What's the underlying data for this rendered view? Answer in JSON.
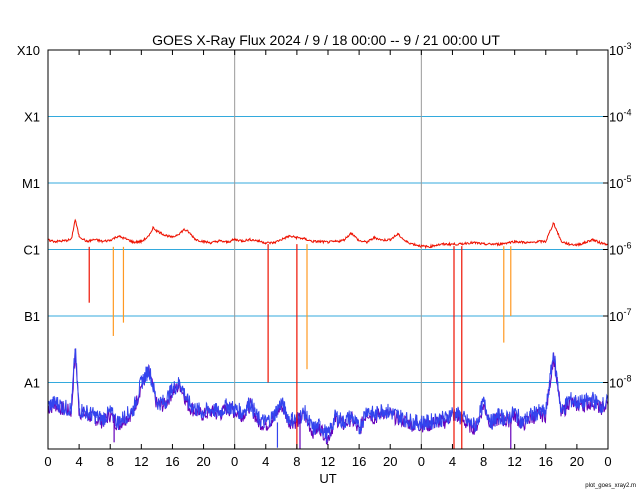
{
  "chart_data": {
    "type": "line",
    "title": "GOES X-Ray Flux   2024  /  9  /  18   00:00 --  9  /  21   00:00   UT",
    "xlabel": "UT",
    "credit": "plot_goes_xray2.m",
    "x_tick_labels": [
      "0",
      "4",
      "8",
      "12",
      "16",
      "20",
      "0",
      "4",
      "8",
      "12",
      "16",
      "20",
      "0",
      "4",
      "8",
      "12",
      "16",
      "20",
      "0"
    ],
    "x_tick_hours": [
      0,
      4,
      8,
      12,
      16,
      20,
      24,
      28,
      32,
      36,
      40,
      44,
      48,
      52,
      56,
      60,
      64,
      68,
      72
    ],
    "day_boundaries_hours": [
      24,
      48
    ],
    "xlim": [
      0,
      72
    ],
    "ylim_log10_flux": [
      -9,
      -3
    ],
    "y_scale": "log",
    "left_class_labels": [
      {
        "label": "X10",
        "log10_flux": -3
      },
      {
        "label": "X1",
        "log10_flux": -4
      },
      {
        "label": "M1",
        "log10_flux": -5
      },
      {
        "label": "C1",
        "log10_flux": -6
      },
      {
        "label": "B1",
        "log10_flux": -7
      },
      {
        "label": "A1",
        "log10_flux": -8
      }
    ],
    "right_tick_labels": [
      {
        "base": "10",
        "exp": "-3",
        "log10_flux": -3
      },
      {
        "base": "10",
        "exp": "-4",
        "log10_flux": -4
      },
      {
        "base": "10",
        "exp": "-5",
        "log10_flux": -5
      },
      {
        "base": "10",
        "exp": "-6",
        "log10_flux": -6
      },
      {
        "base": "10",
        "exp": "-7",
        "log10_flux": -7
      },
      {
        "base": "10",
        "exp": "-8",
        "log10_flux": -8
      }
    ],
    "class_gridlines_log10_flux": [
      -4,
      -5,
      -6,
      -7,
      -8
    ],
    "colors": {
      "long_primary": "#ee1100",
      "long_secondary": "#ff9922",
      "short_primary": "#3344ee",
      "short_secondary": "#6600bb",
      "class_grid": "#33aadd",
      "day_line": "#999999"
    },
    "series": [
      {
        "color": "#ee1100",
        "points": [
          [
            0,
            -5.86
          ],
          [
            1,
            -5.88
          ],
          [
            2,
            -5.87
          ],
          [
            3,
            -5.85
          ],
          [
            3.5,
            -5.55
          ],
          [
            4,
            -5.8
          ],
          [
            5,
            -5.88
          ],
          [
            6,
            -5.85
          ],
          [
            7,
            -5.88
          ],
          [
            8,
            -5.86
          ],
          [
            9,
            -5.8
          ],
          [
            10,
            -5.84
          ],
          [
            11,
            -5.89
          ],
          [
            12,
            -5.88
          ],
          [
            13,
            -5.8
          ],
          [
            13.5,
            -5.67
          ],
          [
            14,
            -5.72
          ],
          [
            15,
            -5.78
          ],
          [
            16,
            -5.82
          ],
          [
            17,
            -5.75
          ],
          [
            17.5,
            -5.7
          ],
          [
            18,
            -5.73
          ],
          [
            19,
            -5.85
          ],
          [
            20,
            -5.88
          ],
          [
            21,
            -5.9
          ],
          [
            22,
            -5.87
          ],
          [
            23,
            -5.89
          ],
          [
            24,
            -5.85
          ],
          [
            25,
            -5.87
          ],
          [
            26,
            -5.85
          ],
          [
            27,
            -5.87
          ],
          [
            28,
            -5.9
          ],
          [
            29,
            -5.9
          ],
          [
            30,
            -5.85
          ],
          [
            31,
            -5.8
          ],
          [
            32,
            -5.82
          ],
          [
            33,
            -5.84
          ],
          [
            34,
            -5.88
          ],
          [
            35,
            -5.88
          ],
          [
            36,
            -5.89
          ],
          [
            37,
            -5.88
          ],
          [
            38,
            -5.86
          ],
          [
            39,
            -5.75
          ],
          [
            40,
            -5.87
          ],
          [
            41,
            -5.89
          ],
          [
            42,
            -5.82
          ],
          [
            43,
            -5.86
          ],
          [
            44,
            -5.85
          ],
          [
            45,
            -5.77
          ],
          [
            46,
            -5.88
          ],
          [
            47,
            -5.92
          ],
          [
            48,
            -5.95
          ],
          [
            49,
            -5.96
          ],
          [
            50,
            -5.93
          ],
          [
            51,
            -5.92
          ],
          [
            52,
            -5.92
          ],
          [
            53,
            -5.92
          ],
          [
            54,
            -5.9
          ],
          [
            55,
            -5.9
          ],
          [
            56,
            -5.92
          ],
          [
            57,
            -5.92
          ],
          [
            58,
            -5.92
          ],
          [
            59,
            -5.9
          ],
          [
            60,
            -5.88
          ],
          [
            61,
            -5.89
          ],
          [
            62,
            -5.9
          ],
          [
            63,
            -5.88
          ],
          [
            64,
            -5.88
          ],
          [
            65,
            -5.6
          ],
          [
            66,
            -5.88
          ],
          [
            67,
            -5.92
          ],
          [
            68,
            -5.93
          ],
          [
            69,
            -5.9
          ],
          [
            70,
            -5.85
          ],
          [
            71,
            -5.9
          ],
          [
            72,
            -5.92
          ]
        ]
      },
      {
        "color": "#3344ee",
        "points": [
          [
            0,
            -8.35
          ],
          [
            1,
            -8.3
          ],
          [
            2,
            -8.37
          ],
          [
            3,
            -8.4
          ],
          [
            3.5,
            -7.5
          ],
          [
            4,
            -8.4
          ],
          [
            5,
            -8.45
          ],
          [
            6,
            -8.5
          ],
          [
            7,
            -8.55
          ],
          [
            8,
            -8.45
          ],
          [
            9,
            -8.6
          ],
          [
            10,
            -8.5
          ],
          [
            11,
            -8.4
          ],
          [
            12,
            -8.0
          ],
          [
            13,
            -7.8
          ],
          [
            14,
            -8.3
          ],
          [
            15,
            -8.3
          ],
          [
            16,
            -8.1
          ],
          [
            17,
            -8.0
          ],
          [
            18,
            -8.3
          ],
          [
            19,
            -8.4
          ],
          [
            20,
            -8.45
          ],
          [
            21,
            -8.4
          ],
          [
            22,
            -8.45
          ],
          [
            23,
            -8.35
          ],
          [
            24,
            -8.4
          ],
          [
            25,
            -8.45
          ],
          [
            26,
            -8.3
          ],
          [
            27,
            -8.55
          ],
          [
            28,
            -8.6
          ],
          [
            29,
            -8.5
          ],
          [
            30,
            -8.3
          ],
          [
            31,
            -8.55
          ],
          [
            32,
            -8.55
          ],
          [
            33,
            -8.45
          ],
          [
            34,
            -8.7
          ],
          [
            35,
            -8.65
          ],
          [
            36,
            -8.8
          ],
          [
            37,
            -8.5
          ],
          [
            38,
            -8.6
          ],
          [
            39,
            -8.5
          ],
          [
            40,
            -8.7
          ],
          [
            41,
            -8.4
          ],
          [
            42,
            -8.5
          ],
          [
            43,
            -8.4
          ],
          [
            44,
            -8.45
          ],
          [
            45,
            -8.5
          ],
          [
            46,
            -8.55
          ],
          [
            47,
            -8.6
          ],
          [
            48,
            -8.6
          ],
          [
            49,
            -8.6
          ],
          [
            50,
            -8.55
          ],
          [
            51,
            -8.55
          ],
          [
            52,
            -8.45
          ],
          [
            53,
            -8.5
          ],
          [
            54,
            -8.6
          ],
          [
            55,
            -8.65
          ],
          [
            56,
            -8.3
          ],
          [
            57,
            -8.6
          ],
          [
            58,
            -8.5
          ],
          [
            59,
            -8.55
          ],
          [
            60,
            -8.45
          ],
          [
            61,
            -8.6
          ],
          [
            62,
            -8.5
          ],
          [
            63,
            -8.45
          ],
          [
            64,
            -8.45
          ],
          [
            65,
            -7.55
          ],
          [
            66,
            -8.45
          ],
          [
            67,
            -8.25
          ],
          [
            68,
            -8.3
          ],
          [
            69,
            -8.3
          ],
          [
            70,
            -8.25
          ],
          [
            71,
            -8.35
          ],
          [
            72,
            -8.3
          ]
        ]
      }
    ]
  }
}
